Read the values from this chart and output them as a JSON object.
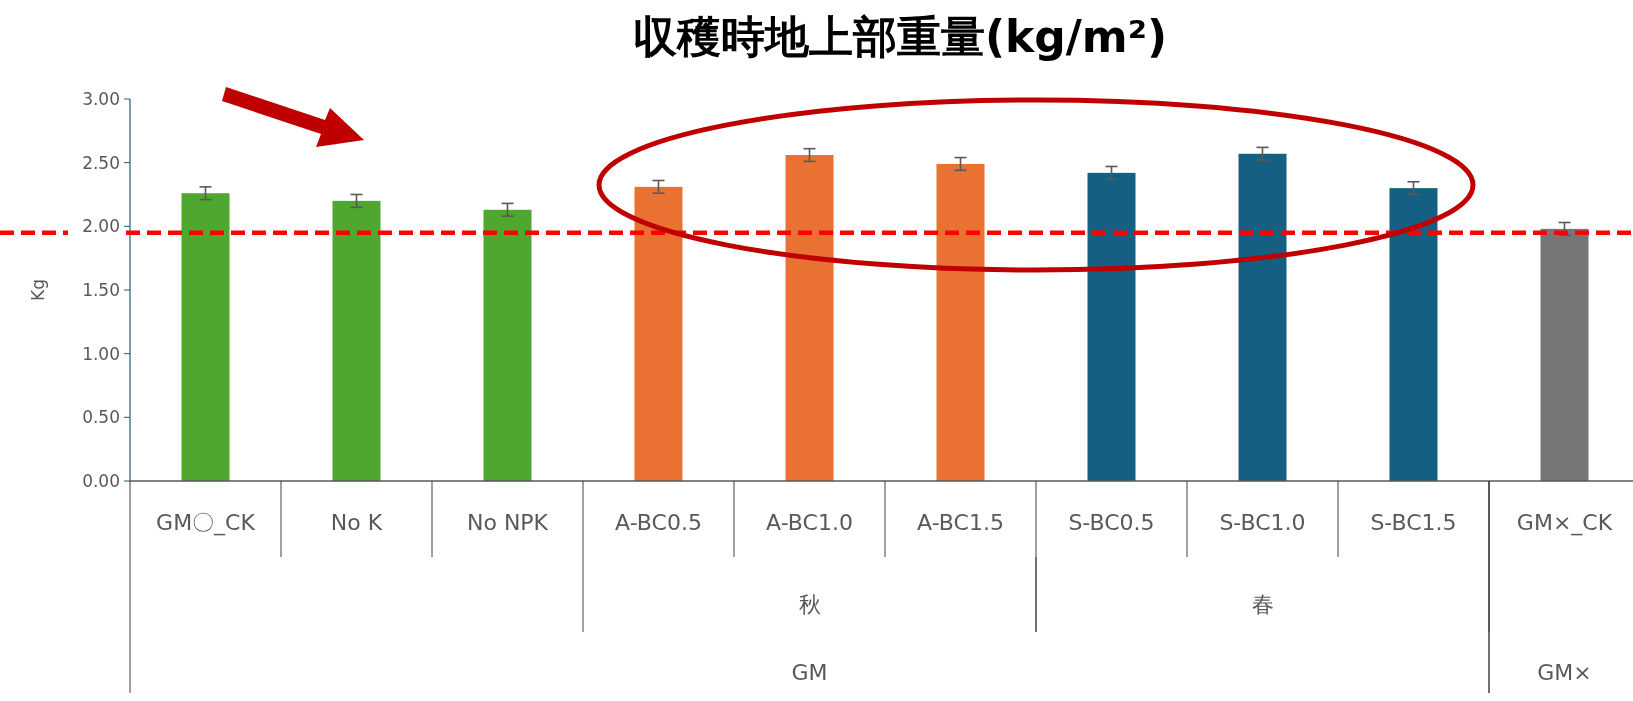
{
  "chart_data": {
    "type": "bar",
    "title": "収穫時地上部重量(kg/m²)",
    "ylabel": "Kg",
    "categories": [
      "GM〇_CK",
      "No K",
      "No NPK",
      "A-BC0.5",
      "A-BC1.0",
      "A-BC1.5",
      "S-BC0.5",
      "S-BC1.0",
      "S-BC1.5",
      "GM×_CK"
    ],
    "values": [
      2.26,
      2.2,
      2.13,
      2.31,
      2.56,
      2.49,
      2.42,
      2.57,
      2.3,
      1.98
    ],
    "errors": [
      0.05,
      0.05,
      0.05,
      0.05,
      0.05,
      0.05,
      0.05,
      0.05,
      0.05,
      0.05
    ],
    "colors": [
      "#4ea72e",
      "#4ea72e",
      "#4ea72e",
      "#e97132",
      "#e97132",
      "#e97132",
      "#156082",
      "#156082",
      "#156082",
      "#767676"
    ],
    "ylim": [
      0,
      3
    ],
    "yticks": [
      {
        "value": 0,
        "label": "0.00"
      },
      {
        "value": 0.5,
        "label": "0.50"
      },
      {
        "value": 1,
        "label": "1.00"
      },
      {
        "value": 1.5,
        "label": "1.50"
      },
      {
        "value": 2,
        "label": "2.00"
      },
      {
        "value": 2.5,
        "label": "2.50"
      },
      {
        "value": 3,
        "label": "3.00"
      }
    ],
    "ref_lines": [
      {
        "axis": "y",
        "value": 1.95,
        "color": "#ff0000",
        "line_style": "dashed"
      }
    ],
    "annotations": [
      "秋",
      "春",
      "GM",
      "GM×"
    ],
    "grid": false
  }
}
